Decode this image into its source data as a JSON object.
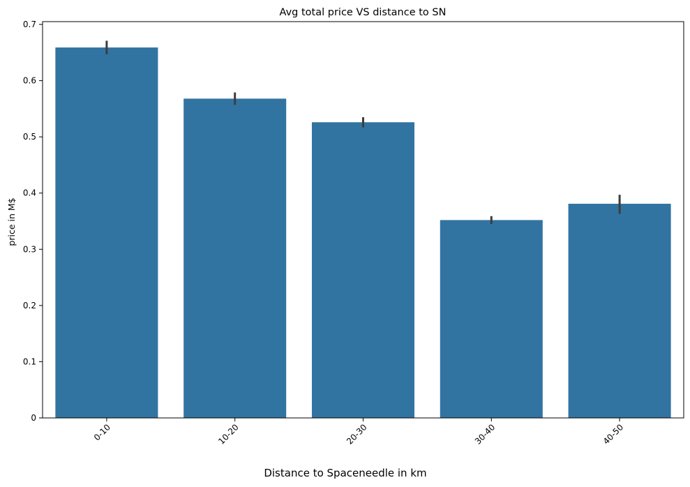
{
  "chart_data": {
    "type": "bar",
    "title": "Avg total price VS distance to SN",
    "xlabel": "Distance to Spaceneedle in km",
    "ylabel": "price in M$",
    "categories": [
      "0-10",
      "10-20",
      "20-30",
      "30-40",
      "40-50"
    ],
    "values": [
      0.659,
      0.568,
      0.526,
      0.352,
      0.381
    ],
    "error_low": [
      0.647,
      0.557,
      0.517,
      0.345,
      0.363
    ],
    "error_high": [
      0.671,
      0.579,
      0.535,
      0.359,
      0.397
    ],
    "ylim": [
      0,
      0.705
    ],
    "yticks": [
      0,
      0.1,
      0.2,
      0.3,
      0.4,
      0.5,
      0.6,
      0.7
    ],
    "ytick_labels": [
      "0",
      "0.1",
      "0.2",
      "0.3",
      "0.4",
      "0.5",
      "0.6",
      "0.7"
    ],
    "xtick_rotation": -45,
    "grid": false,
    "legend": "none",
    "bar_color": "#3274a1",
    "error_color": "#3d3d3d"
  }
}
